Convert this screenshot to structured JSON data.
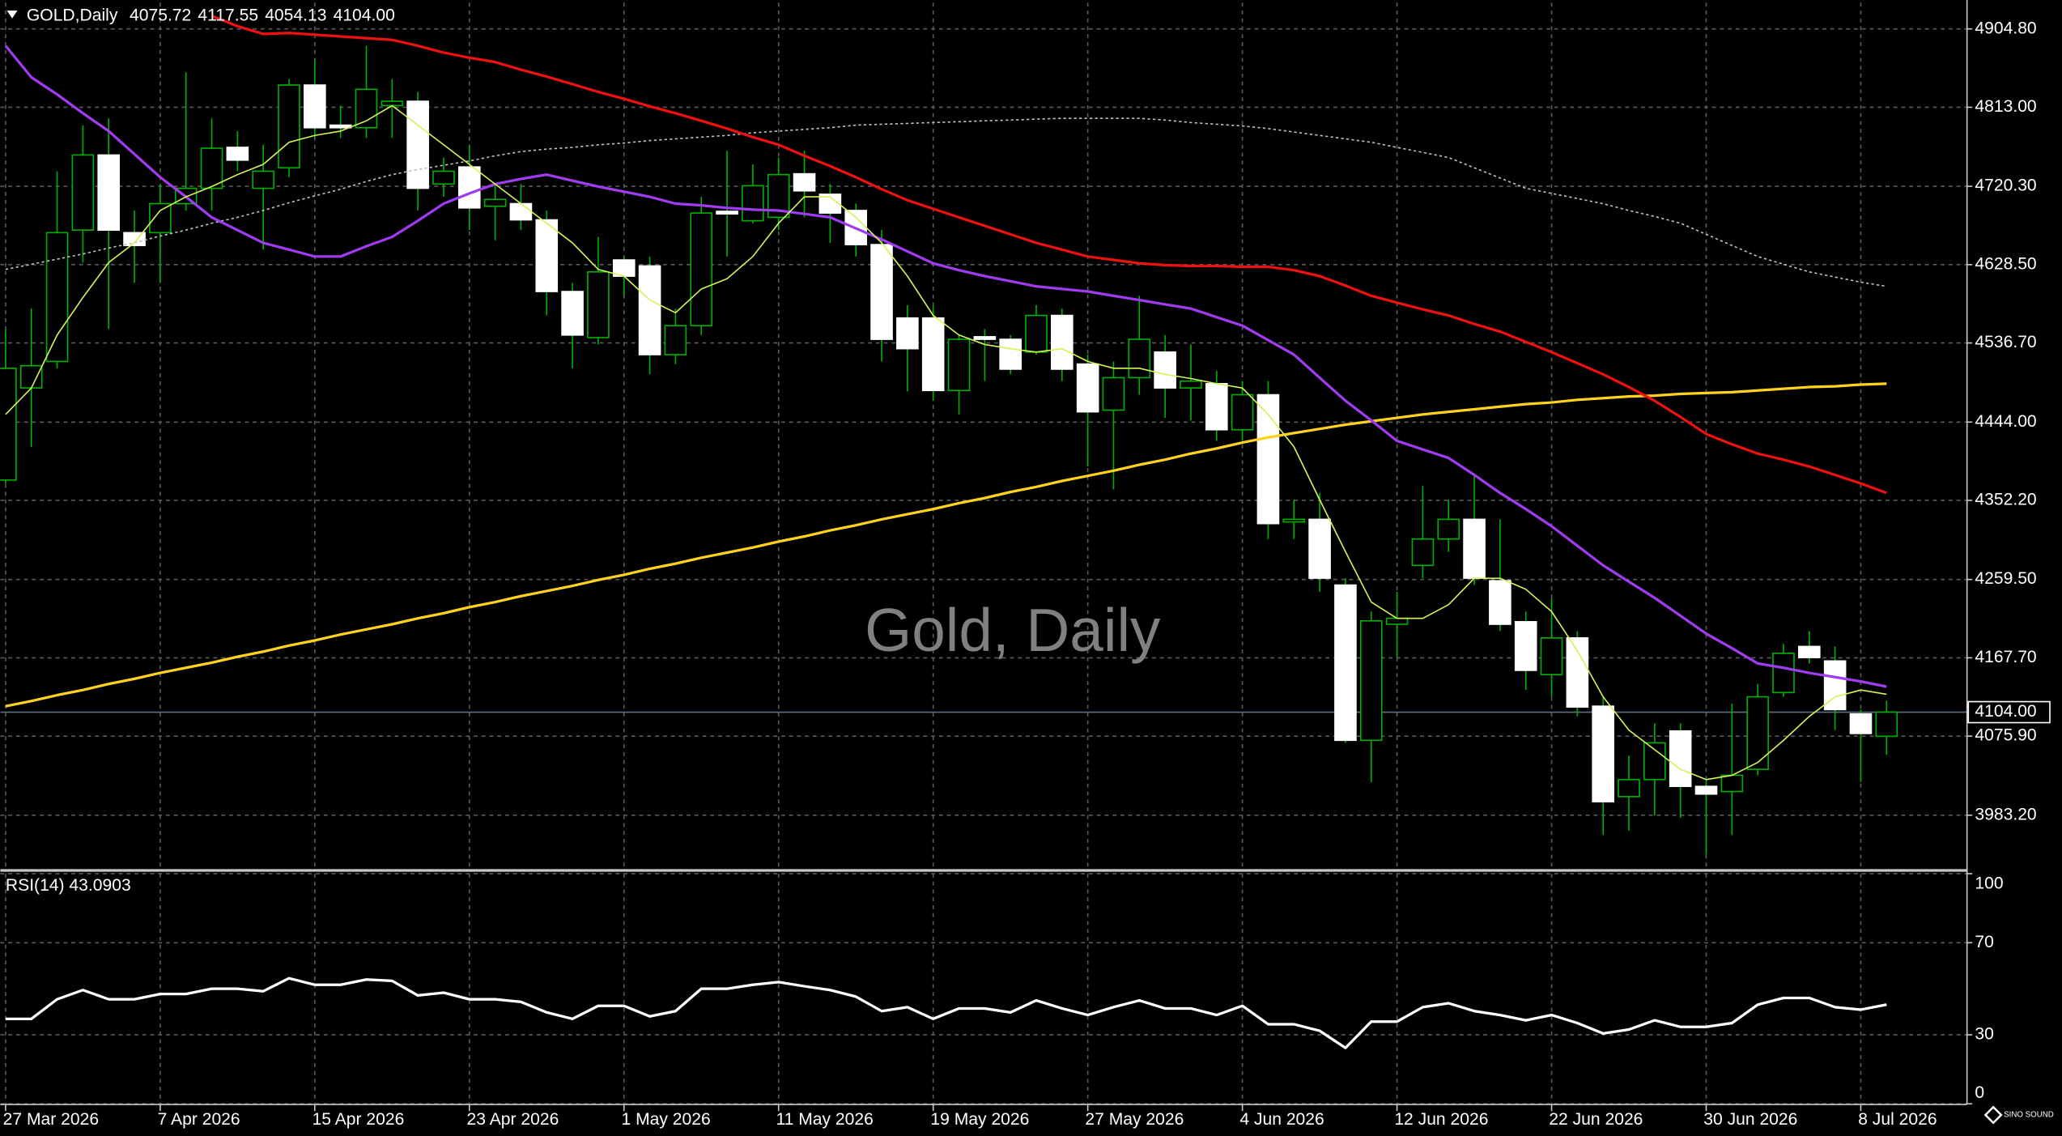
{
  "chart_data": [
    {
      "type": "candlestick",
      "title": "GOLD,Daily",
      "header_values": [
        "4075.72",
        "4117.55",
        "4054.13",
        "4104.00"
      ],
      "watermark": "Gold, Daily",
      "logo_text": "SINO SOUND",
      "categories": [
        "27 Mar 2026",
        null,
        null,
        null,
        null,
        null,
        "7 Apr 2026",
        null,
        null,
        null,
        null,
        null,
        "15 Apr 2026",
        null,
        null,
        null,
        null,
        null,
        "23 Apr 2026",
        null,
        null,
        null,
        null,
        null,
        "1 May 2026",
        null,
        null,
        null,
        null,
        null,
        "11 May 2026",
        null,
        null,
        null,
        null,
        null,
        "19 May 2026",
        null,
        null,
        null,
        null,
        null,
        "27 May 2026",
        null,
        null,
        null,
        null,
        null,
        "4 Jun 2026",
        null,
        null,
        null,
        null,
        null,
        "12 Jun 2026",
        null,
        null,
        null,
        null,
        null,
        "22 Jun 2026",
        null,
        null,
        null,
        null,
        null,
        "30 Jun 2026",
        null,
        null,
        null,
        null,
        null,
        "8 Jul 2026",
        null
      ],
      "open": [
        4376,
        4484,
        4515,
        4669,
        4757,
        4666,
        4666,
        4700,
        4718,
        4766,
        4718,
        4742,
        4839,
        4792,
        4789,
        4815,
        4820,
        4723,
        4743,
        4697,
        4700,
        4681,
        4597,
        4543,
        4634,
        4627,
        4523,
        4557,
        4691,
        4680,
        4684,
        4735,
        4711,
        4692,
        4652,
        4566,
        4566,
        4481,
        4544,
        4541,
        4526,
        4569,
        4512,
        4458,
        4496,
        4526,
        4484,
        4489,
        4435,
        4476,
        4327,
        4330,
        4253,
        4071,
        4207,
        4276,
        4307,
        4330,
        4258,
        4210,
        4148,
        4191,
        4111,
        4005,
        4025,
        4082,
        4017,
        4011,
        4037,
        4127,
        4181,
        4164,
        4102,
        4075.72
      ],
      "high": [
        4553,
        4577,
        4738,
        4792,
        4800,
        4692,
        4723,
        4854,
        4800,
        4785,
        4769,
        4846,
        4869,
        4815,
        4885,
        4846,
        4831,
        4754,
        4769,
        4723,
        4723,
        4692,
        4607,
        4661,
        4638,
        4638,
        4577,
        4708,
        4762,
        4746,
        4754,
        4762,
        4723,
        4700,
        4669,
        4581,
        4581,
        4546,
        4553,
        4546,
        4581,
        4577,
        4523,
        4515,
        4592,
        4546,
        4535,
        4504,
        4492,
        4492,
        4353,
        4361,
        4261,
        4222,
        4245,
        4369,
        4353,
        4384,
        4330,
        4222,
        4238,
        4199,
        4122,
        4053,
        4091,
        4091,
        4026,
        4114,
        4137,
        4184,
        4199,
        4181,
        4107,
        4117.55
      ],
      "low": [
        4372,
        4415,
        4507,
        4631,
        4553,
        4607,
        4607,
        4692,
        4692,
        4738,
        4646,
        4731,
        4777,
        4777,
        4777,
        4777,
        4692,
        4708,
        4669,
        4657,
        4669,
        4569,
        4507,
        4535,
        4592,
        4500,
        4512,
        4546,
        4638,
        4677,
        4669,
        4684,
        4654,
        4638,
        4515,
        4480,
        4469,
        4453,
        4492,
        4500,
        4523,
        4492,
        4392,
        4365,
        4476,
        4449,
        4446,
        4422,
        4422,
        4307,
        4307,
        4245,
        4068,
        4022,
        4168,
        4261,
        4292,
        4253,
        4199,
        4130,
        4122,
        4099,
        3960,
        3965,
        3983,
        3980,
        3937,
        3960,
        4030,
        4122,
        4161,
        4083,
        4022,
        4054.13
      ],
      "close": [
        4507,
        4510,
        4666,
        4757,
        4669,
        4651,
        4700,
        4718,
        4765,
        4751,
        4738,
        4839,
        4789,
        4789,
        4834,
        4820,
        4718,
        4738,
        4695,
        4705,
        4681,
        4597,
        4546,
        4620,
        4615,
        4523,
        4557,
        4689,
        4688,
        4721,
        4734,
        4715,
        4689,
        4652,
        4541,
        4530,
        4481,
        4541,
        4541,
        4506,
        4569,
        4506,
        4456,
        4496,
        4541,
        4484,
        4492,
        4435,
        4476,
        4325,
        4330,
        4261,
        4071,
        4211,
        4214,
        4307,
        4330,
        4261,
        4207,
        4153,
        4191,
        4110,
        3999,
        4025,
        4068,
        4017,
        4008,
        4030,
        4122,
        4173,
        4168,
        4107,
        4079,
        4104
      ],
      "up_color": "#000000",
      "down_color": "#ffffff",
      "wick_color": "#00b000",
      "overlays": [
        {
          "color": "#c0c0c0",
          "dashed": true,
          "width": 1,
          "values": [
            4623,
            4629,
            4635,
            4641,
            4648,
            4654,
            4662,
            4669,
            4677,
            4684,
            4692,
            4701,
            4709,
            4717,
            4726,
            4734,
            4740,
            4745,
            4750,
            4756,
            4761,
            4764,
            4766,
            4769,
            4771,
            4774,
            4776,
            4778,
            4780,
            4783,
            4785,
            4787,
            4789,
            4792,
            4793,
            4794,
            4795,
            4796,
            4797,
            4798,
            4799,
            4800,
            4800,
            4800,
            4800,
            4798,
            4795,
            4793,
            4791,
            4788,
            4784,
            4780,
            4776,
            4772,
            4766,
            4760,
            4754,
            4742,
            4730,
            4718,
            4712,
            4706,
            4700,
            4692,
            4685,
            4677,
            4664,
            4651,
            4638,
            4629,
            4620,
            4614,
            4608,
            4603
          ]
        },
        {
          "color": "#ffd21f",
          "dashed": false,
          "width": 2,
          "values": [
            4111,
            4117,
            4124,
            4130,
            4137,
            4143,
            4150,
            4156,
            4162,
            4169,
            4175,
            4182,
            4188,
            4195,
            4201,
            4207,
            4214,
            4220,
            4227,
            4233,
            4240,
            4246,
            4252,
            4259,
            4265,
            4272,
            4278,
            4285,
            4291,
            4297,
            4304,
            4310,
            4317,
            4323,
            4330,
            4336,
            4342,
            4349,
            4355,
            4362,
            4368,
            4375,
            4381,
            4387,
            4394,
            4400,
            4407,
            4413,
            4420,
            4426,
            4431,
            4436,
            4441,
            4445,
            4449,
            4453,
            4456,
            4459,
            4462,
            4465,
            4467,
            4470,
            4472,
            4474,
            4475,
            4477,
            4478,
            4479,
            4481,
            4483,
            4485,
            4486,
            4488,
            4489
          ]
        },
        {
          "color": "#ee1111",
          "dashed": false,
          "width": 2,
          "values": [
            null,
            null,
            null,
            null,
            null,
            null,
            null,
            null,
            4920,
            4908,
            4899,
            4900,
            4898,
            4896,
            4894,
            4892,
            4885,
            4877,
            4871,
            4866,
            4857,
            4849,
            4840,
            4831,
            4823,
            4814,
            4806,
            4797,
            4788,
            4778,
            4769,
            4756,
            4744,
            4731,
            4717,
            4704,
            4694,
            4684,
            4674,
            4664,
            4654,
            4646,
            4638,
            4634,
            4630,
            4628,
            4627,
            4627,
            4626,
            4626,
            4622,
            4615,
            4604,
            4592,
            4584,
            4576,
            4569,
            4559,
            4550,
            4538,
            4526,
            4513,
            4500,
            4485,
            4469,
            4450,
            4430,
            4418,
            4407,
            4400,
            4392,
            4382,
            4372,
            4361
          ]
        },
        {
          "color": "#a03cf0",
          "dashed": false,
          "width": 2,
          "values": [
            4885,
            4848,
            4828,
            4806,
            4785,
            4758,
            4731,
            4708,
            4684,
            4669,
            4654,
            4646,
            4638,
            4638,
            4650,
            4661,
            4680,
            4700,
            4712,
            4723,
            4729,
            4734,
            4727,
            4720,
            4714,
            4708,
            4700,
            4698,
            4695,
            4693,
            4692,
            4688,
            4684,
            4671,
            4658,
            4644,
            4630,
            4622,
            4615,
            4609,
            4603,
            4600,
            4597,
            4592,
            4587,
            4582,
            4577,
            4567,
            4557,
            4540,
            4523,
            4496,
            4469,
            4446,
            4422,
            4412,
            4402,
            4382,
            4361,
            4342,
            4322,
            4299,
            4276,
            4257,
            4238,
            4217,
            4196,
            4179,
            4161,
            4156,
            4150,
            4145,
            4140,
            4134
          ]
        },
        {
          "color": "#d4f25a",
          "dashed": false,
          "width": 1,
          "values": [
            4453,
            4484,
            4546,
            4590,
            4631,
            4654,
            4692,
            4708,
            4720,
            4734,
            4746,
            4772,
            4780,
            4785,
            4797,
            4815,
            4792,
            4769,
            4746,
            4723,
            4700,
            4677,
            4654,
            4623,
            4615,
            4587,
            4572,
            4600,
            4612,
            4638,
            4677,
            4708,
            4708,
            4684,
            4654,
            4615,
            4569,
            4546,
            4535,
            4530,
            4526,
            4530,
            4515,
            4507,
            4507,
            4500,
            4495,
            4489,
            4484,
            4453,
            4415,
            4353,
            4292,
            4233,
            4214,
            4214,
            4230,
            4261,
            4261,
            4248,
            4222,
            4176,
            4122,
            4083,
            4060,
            4037,
            4025,
            4030,
            4045,
            4071,
            4099,
            4122,
            4130,
            4125
          ]
        }
      ],
      "ylim": [
        3921.6,
        4935.6
      ],
      "yticks": [
        {
          "value": 4904.8,
          "label": "4904.80"
        },
        {
          "value": 4813,
          "label": "4813.00"
        },
        {
          "value": 4720.3,
          "label": "4720.30"
        },
        {
          "value": 4628.5,
          "label": "4628.50"
        },
        {
          "value": 4536.7,
          "label": "4536.70"
        },
        {
          "value": 4444,
          "label": "4444.00"
        },
        {
          "value": 4352.2,
          "label": "4352.20"
        },
        {
          "value": 4259.5,
          "label": "4259.50"
        },
        {
          "value": 4167.7,
          "label": "4167.70"
        },
        {
          "value": 4075.9,
          "label": "4075.90"
        },
        {
          "value": 3983.2,
          "label": "3983.20"
        }
      ],
      "last_price": {
        "value": 4104,
        "label": "4104.00"
      },
      "grid": true
    },
    {
      "type": "line",
      "title": "RSI(14) 43.0903",
      "color": "#ffffff",
      "values": [
        36.9,
        36.9,
        45.4,
        49.4,
        45.4,
        45.4,
        47.7,
        47.7,
        50,
        50,
        48.9,
        54.6,
        51.7,
        51.7,
        54,
        53.4,
        47.1,
        48.3,
        45.4,
        45.4,
        44.3,
        39.7,
        36.9,
        42.6,
        42.6,
        38,
        40.3,
        50,
        50,
        51.7,
        52.9,
        51.1,
        49.4,
        46.6,
        40.3,
        42,
        36.9,
        41.4,
        41.4,
        39.7,
        44.9,
        41.4,
        38.6,
        42,
        44.9,
        41.4,
        41.4,
        38.6,
        42.6,
        34.6,
        34.6,
        31.7,
        24.3,
        35.7,
        35.7,
        42,
        43.7,
        40.3,
        38.6,
        36.3,
        38.6,
        35.1,
        30.6,
        32.3,
        36.3,
        33.4,
        33.4,
        35.1,
        43.1,
        46,
        46,
        42,
        40.9,
        43.0903
      ],
      "ylim": [
        0,
        100
      ],
      "yticks": [
        0,
        30,
        70,
        100
      ],
      "grid": true
    }
  ]
}
